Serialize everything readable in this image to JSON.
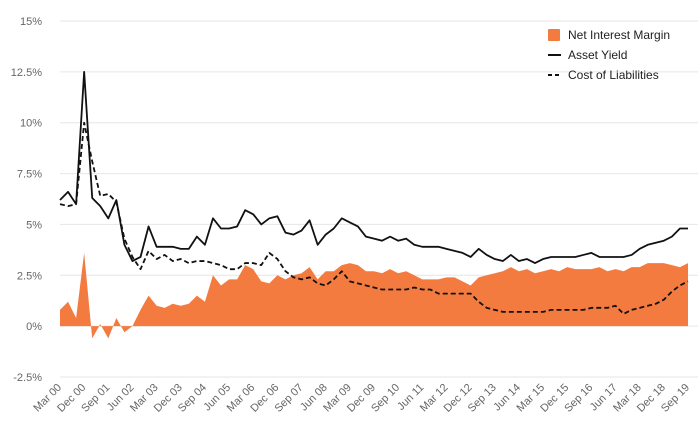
{
  "chart_data": {
    "type": "area",
    "title": "",
    "xlabel": "",
    "ylabel": "",
    "ylim": [
      -2.5,
      15
    ],
    "yticks": [
      -2.5,
      0,
      2.5,
      5,
      7.5,
      10,
      12.5,
      15
    ],
    "ytick_labels": [
      "-2.5%",
      "0%",
      "2.5%",
      "5%",
      "7.5%",
      "10%",
      "12.5%",
      "15%"
    ],
    "x_start": "Mar 00",
    "x_end": "Sep 19",
    "grid": "horizontal",
    "legend_position": "top-right",
    "xtick_labels": [
      "Mar 00",
      "Dec 00",
      "Sep 01",
      "Jun 02",
      "Mar 03",
      "Dec 03",
      "Sep 04",
      "Jun 05",
      "Mar 06",
      "Dec 06",
      "Sep 07",
      "Jun 08",
      "Mar 09",
      "Dec 09",
      "Sep 10",
      "Jun 11",
      "Mar 12",
      "Dec 12",
      "Sep 13",
      "Jun 14",
      "Mar 15",
      "Dec 15",
      "Sep 16",
      "Jun 17",
      "Mar 18",
      "Dec 18",
      "Sep 19"
    ],
    "quarters": [
      "Mar 00",
      "Jun 00",
      "Sep 00",
      "Dec 00",
      "Mar 01",
      "Jun 01",
      "Sep 01",
      "Dec 01",
      "Mar 02",
      "Jun 02",
      "Sep 02",
      "Dec 02",
      "Mar 03",
      "Jun 03",
      "Sep 03",
      "Dec 03",
      "Mar 04",
      "Jun 04",
      "Sep 04",
      "Dec 04",
      "Mar 05",
      "Jun 05",
      "Sep 05",
      "Dec 05",
      "Mar 06",
      "Jun 06",
      "Sep 06",
      "Dec 06",
      "Mar 07",
      "Jun 07",
      "Sep 07",
      "Dec 07",
      "Mar 08",
      "Jun 08",
      "Sep 08",
      "Dec 08",
      "Mar 09",
      "Jun 09",
      "Sep 09",
      "Dec 09",
      "Mar 10",
      "Jun 10",
      "Sep 10",
      "Dec 10",
      "Mar 11",
      "Jun 11",
      "Sep 11",
      "Dec 11",
      "Mar 12",
      "Jun 12",
      "Sep 12",
      "Dec 12",
      "Mar 13",
      "Jun 13",
      "Sep 13",
      "Dec 13",
      "Mar 14",
      "Jun 14",
      "Sep 14",
      "Dec 14",
      "Mar 15",
      "Jun 15",
      "Sep 15",
      "Dec 15",
      "Mar 16",
      "Jun 16",
      "Sep 16",
      "Dec 16",
      "Mar 17",
      "Jun 17",
      "Sep 17",
      "Dec 17",
      "Mar 18",
      "Jun 18",
      "Sep 18",
      "Dec 18",
      "Mar 19",
      "Jun 19",
      "Sep 19"
    ],
    "series": [
      {
        "name": "Net Interest Margin",
        "style": "area",
        "color": "#F47B3F",
        "values": [
          0.8,
          1.2,
          0.4,
          3.6,
          -0.6,
          0.1,
          -0.6,
          0.4,
          -0.3,
          0.0,
          0.8,
          1.5,
          1.0,
          0.9,
          1.1,
          1.0,
          1.1,
          1.5,
          1.2,
          2.5,
          2.0,
          2.3,
          2.3,
          3.0,
          2.8,
          2.2,
          2.1,
          2.5,
          2.3,
          2.5,
          2.6,
          2.9,
          2.3,
          2.7,
          2.7,
          3.0,
          3.1,
          3.0,
          2.7,
          2.7,
          2.6,
          2.8,
          2.6,
          2.7,
          2.5,
          2.3,
          2.3,
          2.3,
          2.4,
          2.4,
          2.2,
          2.0,
          2.4,
          2.5,
          2.6,
          2.7,
          2.9,
          2.7,
          2.8,
          2.6,
          2.7,
          2.8,
          2.7,
          2.9,
          2.8,
          2.8,
          2.8,
          2.9,
          2.7,
          2.8,
          2.7,
          2.9,
          2.9,
          3.1,
          3.1,
          3.1,
          3.0,
          2.9,
          3.1
        ]
      },
      {
        "name": "Asset Yield",
        "style": "solid",
        "color": "#111111",
        "values": [
          6.2,
          6.6,
          6.0,
          12.5,
          6.3,
          5.9,
          5.3,
          6.2,
          4.0,
          3.2,
          3.4,
          4.9,
          3.9,
          3.9,
          3.9,
          3.8,
          3.8,
          4.4,
          4.0,
          5.3,
          4.8,
          4.8,
          4.9,
          5.7,
          5.5,
          5.0,
          5.3,
          5.4,
          4.6,
          4.5,
          4.7,
          5.2,
          4.0,
          4.5,
          4.8,
          5.3,
          5.1,
          4.9,
          4.4,
          4.3,
          4.2,
          4.4,
          4.2,
          4.3,
          4.0,
          3.9,
          3.9,
          3.9,
          3.8,
          3.7,
          3.6,
          3.4,
          3.8,
          3.5,
          3.3,
          3.2,
          3.5,
          3.2,
          3.3,
          3.1,
          3.3,
          3.4,
          3.4,
          3.4,
          3.4,
          3.5,
          3.6,
          3.4,
          3.4,
          3.4,
          3.4,
          3.5,
          3.8,
          4.0,
          4.1,
          4.2,
          4.4,
          4.8,
          4.8
        ]
      },
      {
        "name": "Cost of Liabilities",
        "style": "dashed",
        "color": "#111111",
        "values": [
          6.0,
          5.9,
          6.0,
          10.0,
          8.1,
          6.4,
          6.5,
          6.1,
          4.3,
          3.4,
          2.8,
          3.7,
          3.3,
          3.5,
          3.2,
          3.3,
          3.1,
          3.2,
          3.2,
          3.1,
          3.0,
          2.8,
          2.8,
          3.1,
          3.1,
          3.0,
          3.6,
          3.3,
          2.7,
          2.4,
          2.3,
          2.4,
          2.1,
          2.0,
          2.3,
          2.7,
          2.2,
          2.1,
          2.0,
          1.9,
          1.8,
          1.8,
          1.8,
          1.8,
          1.9,
          1.8,
          1.8,
          1.6,
          1.6,
          1.6,
          1.6,
          1.6,
          1.2,
          0.9,
          0.8,
          0.7,
          0.7,
          0.7,
          0.7,
          0.7,
          0.7,
          0.8,
          0.8,
          0.8,
          0.8,
          0.8,
          0.9,
          0.9,
          0.9,
          1.0,
          0.6,
          0.8,
          0.9,
          1.0,
          1.1,
          1.3,
          1.7,
          2.0,
          2.2
        ]
      }
    ]
  }
}
